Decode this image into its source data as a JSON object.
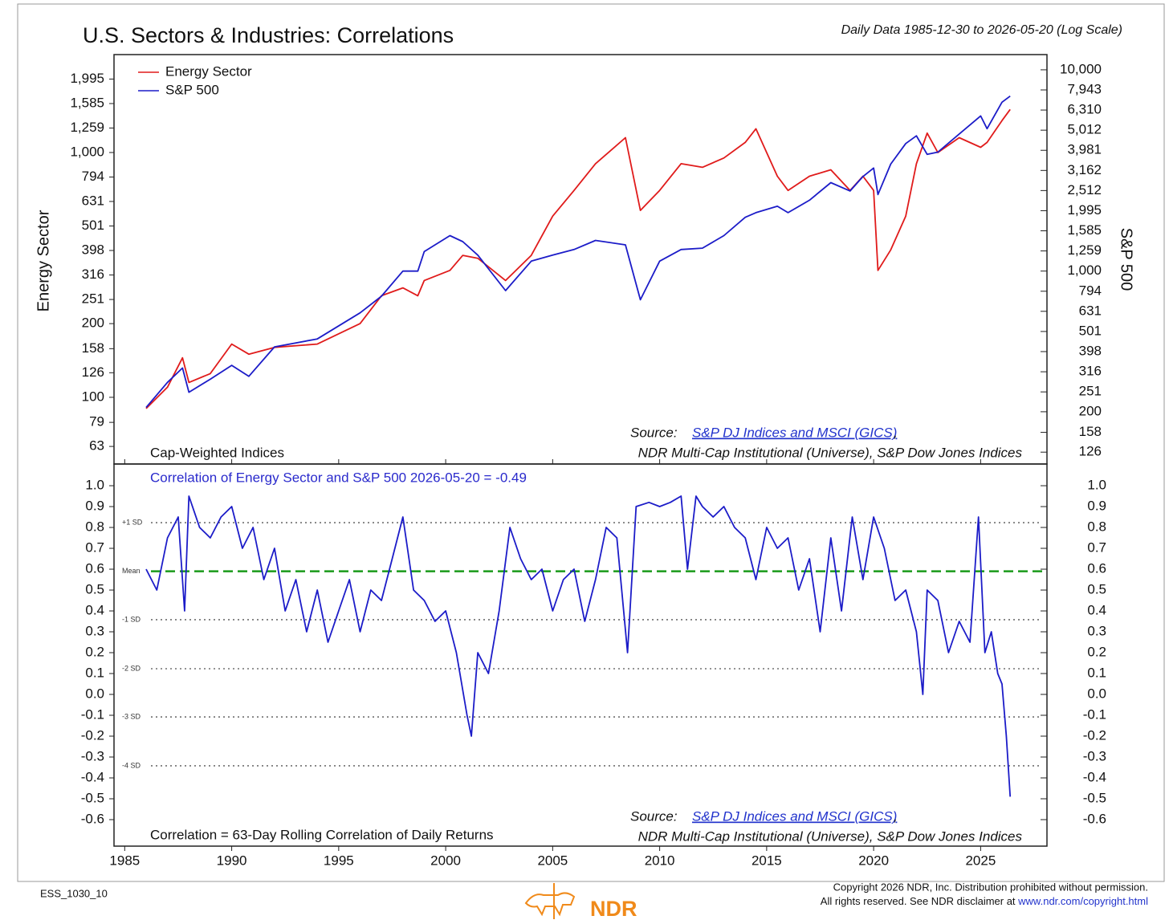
{
  "header": {
    "title": "U.S. Sectors & Industries: Correlations",
    "subtitle": "Daily Data 1985-12-30 to 2026-05-20 (Log Scale)"
  },
  "chart_data": [
    {
      "type": "line",
      "log_scale": true,
      "legend": "upper left",
      "y_label": "Energy Sector",
      "y2_label": "S&P 500",
      "note": "Cap-Weighted Indices",
      "source": {
        "prefix": "Source:",
        "link": "S&P DJ Indices and MSCI (GICS)",
        "suffix": ",",
        "line2": "NDR Multi-Cap Institutional (Universe), S&P Dow Jones Indices"
      },
      "xlim": [
        1984.5,
        2028.1
      ],
      "xticks": [
        1985,
        1990,
        1995,
        2000,
        2005,
        2010,
        2015,
        2020,
        2025
      ],
      "ylim": [
        53.4,
        2512
      ],
      "yticks": [
        63,
        79,
        100,
        126,
        158,
        200,
        251,
        316,
        398,
        501,
        631,
        794,
        {
          "value": 1000,
          "label": "1,000"
        },
        {
          "value": 1259,
          "label": "1,259"
        },
        {
          "value": 1585,
          "label": "1,585"
        },
        {
          "value": 1995,
          "label": "1,995"
        }
      ],
      "y2lim": [
        110,
        11900
      ],
      "y2ticks": [
        126,
        158,
        200,
        251,
        316,
        398,
        501,
        631,
        794,
        {
          "value": 1000,
          "label": "1,000"
        },
        {
          "value": 1259,
          "label": "1,259"
        },
        {
          "value": 1585,
          "label": "1,585"
        },
        {
          "value": 1995,
          "label": "1,995"
        },
        {
          "value": 2512,
          "label": "2,512"
        },
        {
          "value": 3162,
          "label": "3,162"
        },
        {
          "value": 3981,
          "label": "3,981"
        },
        {
          "value": 5012,
          "label": "5,012"
        },
        {
          "value": 6310,
          "label": "6,310"
        },
        {
          "value": 7943,
          "label": "7,943"
        },
        {
          "value": 10000,
          "label": "10,000"
        }
      ],
      "x": [
        1986,
        1987,
        1987.7,
        1988,
        1989,
        1990,
        1990.8,
        1992,
        1994,
        1996,
        1997,
        1998,
        1998.7,
        1999,
        2000.2,
        2000.8,
        2001.5,
        2002.8,
        2004,
        2005,
        2006,
        2007,
        2008.4,
        2009.1,
        2010,
        2011,
        2012,
        2013,
        2014,
        2014.5,
        2015.5,
        2016,
        2017,
        2018,
        2018.9,
        2019.5,
        2020,
        2020.2,
        2020.8,
        2021.5,
        2022,
        2022.5,
        2023,
        2024,
        2025,
        2025.3,
        2026,
        2026.38
      ],
      "series": [
        {
          "name": "Energy Sector",
          "color": "#e01b1b",
          "values": [
            90,
            110,
            145,
            115,
            125,
            165,
            150,
            160,
            165,
            200,
            260,
            280,
            260,
            300,
            330,
            380,
            370,
            300,
            380,
            550,
            700,
            900,
            1150,
            580,
            700,
            900,
            870,
            950,
            1100,
            1250,
            800,
            700,
            800,
            850,
            700,
            800,
            700,
            330,
            400,
            550,
            900,
            1200,
            1000,
            1150,
            1050,
            1100,
            1350,
            1500
          ]
        },
        {
          "name": "S&P 500",
          "color": "#1c1cc8",
          "axis": "y2",
          "values": [
            210,
            280,
            330,
            250,
            290,
            340,
            300,
            420,
            460,
            620,
            750,
            1000,
            1000,
            1250,
            1500,
            1400,
            1200,
            800,
            1120,
            1200,
            1280,
            1420,
            1350,
            720,
            1120,
            1280,
            1300,
            1500,
            1850,
            1950,
            2100,
            1950,
            2250,
            2750,
            2500,
            2950,
            3250,
            2400,
            3400,
            4300,
            4700,
            3800,
            3900,
            4800,
            5900,
            5100,
            6900,
            7400
          ]
        }
      ]
    },
    {
      "type": "line",
      "log_scale": false,
      "title": "Correlation of Energy Sector and S&P 500 2026-05-20 = -0.49",
      "note": "Correlation = 63-Day Rolling Correlation of Daily Returns",
      "source": {
        "prefix": "Source:",
        "link": "S&P DJ Indices and MSCI (GICS)",
        "suffix": ",",
        "line2": "NDR Multi-Cap Institutional (Universe), S&P Dow Jones Indices"
      },
      "xlim": [
        1984.5,
        2028.1
      ],
      "xticks": [
        1985,
        1990,
        1995,
        2000,
        2005,
        2010,
        2015,
        2020,
        2025
      ],
      "ylim": [
        -0.727,
        1.104
      ],
      "yticks": [
        {
          "value": 1,
          "label": "1.0"
        },
        0.9,
        0.8,
        0.7,
        0.6,
        0.5,
        0.4,
        0.3,
        0.2,
        0.1,
        {
          "value": 0,
          "label": "0.0"
        },
        -0.1,
        -0.2,
        -0.3,
        -0.4,
        -0.5,
        -0.6
      ],
      "reference_lines": [
        {
          "label": "+1 SD",
          "value": 0.823,
          "color": "#555555"
        },
        {
          "label": "Mean",
          "value": 0.59,
          "color": "#1a9a1a"
        },
        {
          "label": "-1 SD",
          "value": 0.358,
          "color": "#555555"
        },
        {
          "label": "-2 SD",
          "value": 0.123,
          "color": "#555555"
        },
        {
          "label": "-3 SD",
          "value": -0.108,
          "color": "#555555"
        },
        {
          "label": "-4 SD",
          "value": -0.342,
          "color": "#555555"
        }
      ],
      "color": "#1c1cc8",
      "x": [
        1986.0,
        1986.5,
        1987.0,
        1987.5,
        1987.8,
        1988.0,
        1988.5,
        1989.0,
        1989.5,
        1990.0,
        1990.5,
        1991.0,
        1991.5,
        1992.0,
        1992.5,
        1993.0,
        1993.5,
        1994.0,
        1994.5,
        1995.0,
        1995.5,
        1996.0,
        1996.5,
        1997.0,
        1997.5,
        1998.0,
        1998.5,
        1999.0,
        1999.5,
        2000.0,
        2000.5,
        2001.0,
        2001.2,
        2001.5,
        2002.0,
        2002.5,
        2003.0,
        2003.5,
        2004.0,
        2004.5,
        2005.0,
        2005.5,
        2006.0,
        2006.5,
        2007.0,
        2007.5,
        2008.0,
        2008.5,
        2008.9,
        2009.5,
        2010.0,
        2010.5,
        2011.0,
        2011.3,
        2011.7,
        2012.0,
        2012.5,
        2013.0,
        2013.5,
        2014.0,
        2014.5,
        2015.0,
        2015.5,
        2016.0,
        2016.5,
        2017.0,
        2017.5,
        2018.0,
        2018.5,
        2019.0,
        2019.5,
        2020.0,
        2020.5,
        2021.0,
        2021.5,
        2022.0,
        2022.3,
        2022.5,
        2023.0,
        2023.5,
        2024.0,
        2024.5,
        2024.9,
        2025.2,
        2025.5,
        2025.8,
        2026.0,
        2026.2,
        2026.38
      ],
      "values": [
        0.6,
        0.5,
        0.75,
        0.85,
        0.4,
        0.95,
        0.8,
        0.75,
        0.85,
        0.9,
        0.7,
        0.8,
        0.55,
        0.7,
        0.4,
        0.55,
        0.3,
        0.5,
        0.25,
        0.4,
        0.55,
        0.3,
        0.5,
        0.45,
        0.65,
        0.85,
        0.5,
        0.45,
        0.35,
        0.4,
        0.2,
        -0.1,
        -0.2,
        0.2,
        0.1,
        0.4,
        0.8,
        0.65,
        0.55,
        0.6,
        0.4,
        0.55,
        0.6,
        0.35,
        0.55,
        0.8,
        0.75,
        0.2,
        0.9,
        0.92,
        0.9,
        0.92,
        0.95,
        0.6,
        0.95,
        0.9,
        0.85,
        0.9,
        0.8,
        0.75,
        0.55,
        0.8,
        0.7,
        0.75,
        0.5,
        0.65,
        0.3,
        0.75,
        0.4,
        0.85,
        0.55,
        0.85,
        0.7,
        0.45,
        0.5,
        0.3,
        0.0,
        0.5,
        0.45,
        0.2,
        0.35,
        0.25,
        0.85,
        0.2,
        0.3,
        0.1,
        0.05,
        -0.2,
        -0.49
      ]
    }
  ],
  "footer": {
    "code": "ESS_1030_10",
    "logo": "NDR",
    "copyright1": "Copyright 2026 NDR, Inc. Distribution prohibited without permission.",
    "copyright2": "All rights reserved. See NDR disclaimer at ",
    "copyright_link": "www.ndr.com/copyright.html"
  }
}
